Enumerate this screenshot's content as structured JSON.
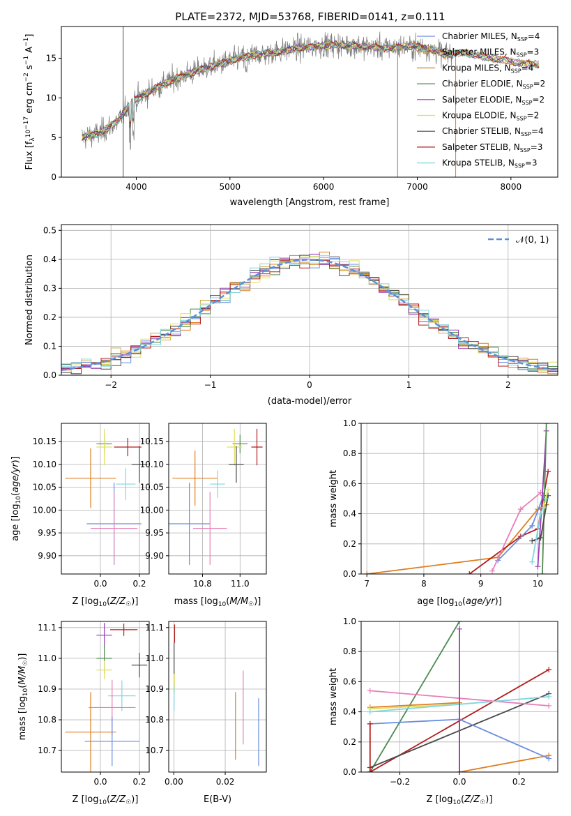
{
  "figure": {
    "title": "PLATE=2372, MJD=53768, FIBERID=0141, z=0.111"
  },
  "colors": {
    "chabrier_miles": "#6a8ee0",
    "salpeter_miles": "#d9a441",
    "kroupa_miles": "#e07d1f",
    "chabrier_elodie": "#4f8a4f",
    "salpeter_elodie": "#9b3bb5",
    "kroupa_elodie": "#e2e05a",
    "chabrier_stelib": "#4a4a4a",
    "salpeter_stelib": "#b31b1b",
    "kroupa_stelib": "#7fd6e0",
    "pink": "#e67fb8",
    "normal_curve": "#5b8fd8",
    "data_spectrum": "#7a7a7a",
    "grid": "#b0b0b0"
  },
  "chart_data": [
    {
      "id": "spectrum",
      "type": "line",
      "title": "PLATE=2372, MJD=53768, FIBERID=0141, z=0.111",
      "xlabel": "wavelength [Angstrom, rest frame]",
      "ylabel": "Flux [f_λ 10^-17 erg cm^-2 s^-1 A^-1]",
      "xlim": [
        3200,
        8500
      ],
      "ylim": [
        0,
        19
      ],
      "xticks": [
        4000,
        5000,
        6000,
        7000,
        8000
      ],
      "yticks": [
        0,
        5,
        10,
        15
      ],
      "grid": false,
      "legend_position": "right",
      "legend": [
        {
          "label": "Chabrier MILES, N",
          "sub": "SSP",
          "tail": "=4",
          "color": "#6a8ee0"
        },
        {
          "label": "Salpeter MILES, N",
          "sub": "SSP",
          "tail": "=3",
          "color": "#d9a441"
        },
        {
          "label": "Kroupa MILES, N",
          "sub": "SSP",
          "tail": "=4",
          "color": "#e07d1f"
        },
        {
          "label": "Chabrier ELODIE, N",
          "sub": "SSP",
          "tail": "=2",
          "color": "#4f8a4f"
        },
        {
          "label": "Salpeter ELODIE, N",
          "sub": "SSP",
          "tail": "=2",
          "color": "#9b3bb5"
        },
        {
          "label": "Kroupa ELODIE, N",
          "sub": "SSP",
          "tail": "=2",
          "color": "#e2e05a"
        },
        {
          "label": "Chabrier STELIB, N",
          "sub": "SSP",
          "tail": "=4",
          "color": "#4a4a4a"
        },
        {
          "label": "Salpeter STELIB, N",
          "sub": "SSP",
          "tail": "=3",
          "color": "#b31b1b"
        },
        {
          "label": "Kroupa STELIB, N",
          "sub": "SSP",
          "tail": "=3",
          "color": "#7fd6e0"
        }
      ],
      "continuum": [
        [
          3420,
          5.0
        ],
        [
          3600,
          5.5
        ],
        [
          3800,
          7.0
        ],
        [
          3950,
          9.5
        ],
        [
          4100,
          10.5
        ],
        [
          4300,
          11.8
        ],
        [
          4500,
          12.8
        ],
        [
          4700,
          13.6
        ],
        [
          4900,
          14.3
        ],
        [
          5100,
          15.0
        ],
        [
          5300,
          15.5
        ],
        [
          5500,
          15.8
        ],
        [
          5700,
          16.2
        ],
        [
          5900,
          16.5
        ],
        [
          6100,
          16.7
        ],
        [
          6300,
          16.6
        ],
        [
          6500,
          16.4
        ],
        [
          6700,
          16.3
        ],
        [
          6900,
          16.5
        ],
        [
          7100,
          16.3
        ],
        [
          7300,
          15.5
        ],
        [
          7500,
          15.7
        ],
        [
          7700,
          15.2
        ],
        [
          7900,
          14.8
        ],
        [
          8100,
          14.4
        ],
        [
          8300,
          14.2
        ]
      ],
      "data_xrange": [
        3420,
        7380
      ],
      "model_xrange": [
        3420,
        8300
      ],
      "spikes": [
        {
          "x": 3860,
          "y0": 0,
          "y1": 19,
          "color": "#4a4a4a"
        },
        {
          "x": 6790,
          "y0": 0,
          "y1": 16.5,
          "color": "#8a8a2a"
        },
        {
          "x": 7410,
          "y0": 0,
          "y1": 15.5,
          "color": "#e07d1f"
        }
      ]
    },
    {
      "id": "residuals",
      "type": "histogram",
      "xlabel": "(data-model)/error",
      "ylabel": "Normed distribution",
      "xlim": [
        -2.5,
        2.5
      ],
      "ylim": [
        0,
        0.52
      ],
      "xticks": [
        -2,
        -1,
        0,
        1,
        2
      ],
      "yticks": [
        0.0,
        0.1,
        0.2,
        0.3,
        0.4,
        0.5
      ],
      "grid": true,
      "legend_position": "top-right",
      "legend": [
        {
          "label": "𝒩(0, 1)",
          "color": "#5b8fd8",
          "style": "dashed"
        }
      ],
      "bin_width": 0.1,
      "series_count": 9
    },
    {
      "id": "age_vs_Z",
      "type": "scatter",
      "xlabel": "Z [log10(Z/Z☉)]",
      "ylabel": "age [log10(age/yr)]",
      "xlim": [
        -0.2,
        0.25
      ],
      "ylim": [
        9.86,
        10.19
      ],
      "xticks": [
        0.0,
        0.2
      ],
      "yticks": [
        9.9,
        9.95,
        10.0,
        10.05,
        10.1,
        10.15
      ],
      "grid": true,
      "points": [
        {
          "x": 0.02,
          "y": 10.145,
          "xerr": 0.04,
          "yerr": 0.02,
          "color": "#4f8a4f"
        },
        {
          "x": 0.02,
          "y": 10.138,
          "xerr": 0.04,
          "yerr": 0.04,
          "color": "#e2e05a"
        },
        {
          "x": 0.14,
          "y": 10.138,
          "xerr": 0.07,
          "yerr": 0.02,
          "color": "#b31b1b"
        },
        {
          "x": 0.2,
          "y": 10.1,
          "xerr": 0.04,
          "yerr": 0.04,
          "color": "#4a4a4a"
        },
        {
          "x": -0.05,
          "y": 10.07,
          "xerr": 0.13,
          "yerr": 0.065,
          "color": "#e07d1f"
        },
        {
          "x": 0.13,
          "y": 10.057,
          "xerr": 0.05,
          "yerr": 0.035,
          "color": "#7fd6e0"
        },
        {
          "x": 0.07,
          "y": 9.97,
          "xerr": 0.14,
          "yerr": 0.09,
          "color": "#6a8ee0"
        },
        {
          "x": 0.07,
          "y": 9.96,
          "xerr": 0.12,
          "yerr": 0.08,
          "color": "#e67fb8"
        }
      ]
    },
    {
      "id": "age_vs_mass",
      "type": "scatter",
      "xlabel": "mass [log10(M/M☉)]",
      "ylabel": "",
      "xlim": [
        10.62,
        11.14
      ],
      "ylim": [
        9.86,
        10.19
      ],
      "xticks": [
        10.8,
        11.0
      ],
      "yticks": [
        9.9,
        9.95,
        10.0,
        10.05,
        10.1,
        10.15
      ],
      "grid": true,
      "points": [
        {
          "x": 11.0,
          "y": 10.145,
          "xerr": 0.04,
          "yerr": 0.02,
          "color": "#4f8a4f"
        },
        {
          "x": 10.97,
          "y": 10.138,
          "xerr": 0.04,
          "yerr": 0.04,
          "color": "#e2e05a"
        },
        {
          "x": 11.09,
          "y": 10.138,
          "xerr": 0.03,
          "yerr": 0.04,
          "color": "#b31b1b"
        },
        {
          "x": 10.98,
          "y": 10.1,
          "xerr": 0.04,
          "yerr": 0.04,
          "color": "#4a4a4a"
        },
        {
          "x": 10.76,
          "y": 10.07,
          "xerr": 0.12,
          "yerr": 0.06,
          "color": "#e07d1f"
        },
        {
          "x": 10.88,
          "y": 10.057,
          "xerr": 0.04,
          "yerr": 0.03,
          "color": "#7fd6e0"
        },
        {
          "x": 10.73,
          "y": 9.97,
          "xerr": 0.11,
          "yerr": 0.09,
          "color": "#6a8ee0"
        },
        {
          "x": 10.84,
          "y": 9.96,
          "xerr": 0.09,
          "yerr": 0.08,
          "color": "#e67fb8"
        }
      ]
    },
    {
      "id": "massweight_vs_age",
      "type": "line",
      "xlabel": "age [log10(age/yr)]",
      "ylabel": "mass weight",
      "xlim": [
        6.9,
        10.35
      ],
      "ylim": [
        0,
        1.0
      ],
      "xticks": [
        7,
        8,
        9,
        10
      ],
      "yticks": [
        0.0,
        0.2,
        0.4,
        0.6,
        0.8,
        1.0
      ],
      "grid": true,
      "series": [
        {
          "color": "#e07d1f",
          "points": [
            [
              7.0,
              0.0
            ],
            [
              9.3,
              0.11
            ],
            [
              10.0,
              0.43
            ],
            [
              10.15,
              0.46
            ]
          ]
        },
        {
          "color": "#b31b1b",
          "points": [
            [
              8.8,
              0.0
            ],
            [
              9.7,
              0.25
            ],
            [
              10.0,
              0.3
            ],
            [
              10.18,
              0.68
            ]
          ]
        },
        {
          "color": "#6a8ee0",
          "points": [
            [
              9.3,
              0.09
            ],
            [
              9.9,
              0.32
            ],
            [
              10.1,
              0.52
            ]
          ]
        },
        {
          "color": "#e67fb8",
          "points": [
            [
              9.2,
              0.02
            ],
            [
              9.7,
              0.43
            ],
            [
              10.05,
              0.54
            ]
          ]
        },
        {
          "color": "#9b3bb5",
          "points": [
            [
              10.0,
              0.05
            ],
            [
              10.15,
              0.95
            ]
          ]
        },
        {
          "color": "#4f8a4f",
          "points": [
            [
              10.08,
              0.0
            ],
            [
              10.15,
              1.0
            ]
          ]
        },
        {
          "color": "#4a4a4a",
          "points": [
            [
              9.9,
              0.22
            ],
            [
              10.05,
              0.24
            ],
            [
              10.18,
              0.52
            ]
          ]
        },
        {
          "color": "#7fd6e0",
          "points": [
            [
              9.9,
              0.08
            ],
            [
              10.05,
              0.4
            ],
            [
              10.15,
              0.5
            ]
          ]
        },
        {
          "color": "#e2e05a",
          "points": [
            [
              10.1,
              0.44
            ],
            [
              10.18,
              0.56
            ]
          ]
        }
      ]
    },
    {
      "id": "mass_vs_Z",
      "type": "scatter",
      "xlabel": "Z [log10(Z/Z☉)]",
      "ylabel": "mass [log10(M/M☉)]",
      "xlim": [
        -0.2,
        0.25
      ],
      "ylim": [
        10.63,
        11.12
      ],
      "xticks": [
        0.0,
        0.2
      ],
      "yticks": [
        10.7,
        10.8,
        10.9,
        11.0,
        11.1
      ],
      "grid": true,
      "points": [
        {
          "x": 0.12,
          "y": 11.093,
          "xerr": 0.07,
          "yerr": 0.02,
          "color": "#b31b1b"
        },
        {
          "x": 0.02,
          "y": 11.075,
          "xerr": 0.04,
          "yerr": 0.04,
          "color": "#9b3bb5"
        },
        {
          "x": 0.02,
          "y": 11.0,
          "xerr": 0.04,
          "yerr": 0.05,
          "color": "#4f8a4f"
        },
        {
          "x": 0.2,
          "y": 10.978,
          "xerr": 0.04,
          "yerr": 0.04,
          "color": "#4a4a4a"
        },
        {
          "x": 0.02,
          "y": 10.962,
          "xerr": 0.04,
          "yerr": 0.03,
          "color": "#e2e05a"
        },
        {
          "x": 0.11,
          "y": 10.878,
          "xerr": 0.07,
          "yerr": 0.05,
          "color": "#7fd6e0"
        },
        {
          "x": 0.06,
          "y": 10.84,
          "xerr": 0.12,
          "yerr": 0.09,
          "color": "#e67fb8"
        },
        {
          "x": -0.05,
          "y": 10.76,
          "xerr": 0.13,
          "yerr": 0.13,
          "color": "#e07d1f"
        },
        {
          "x": 0.06,
          "y": 10.73,
          "xerr": 0.14,
          "yerr": 0.08,
          "color": "#6a8ee0"
        }
      ]
    },
    {
      "id": "mass_vs_ebv",
      "type": "scatter",
      "xlabel": "E(B-V)",
      "ylabel": "",
      "xlim": [
        -0.002,
        0.036
      ],
      "ylim": [
        10.63,
        11.12
      ],
      "xticks": [
        0.0,
        0.02
      ],
      "yticks": [
        10.7,
        10.8,
        10.9,
        11.0,
        11.1
      ],
      "grid": true,
      "points": [
        {
          "x": 0.0003,
          "y": 11.08,
          "xerr": 0,
          "yerr": 0.03,
          "color": "#b31b1b"
        },
        {
          "x": 0.0001,
          "y": 11.0,
          "xerr": 0,
          "yerr": 0.05,
          "color": "#4a4a4a"
        },
        {
          "x": 0.0002,
          "y": 10.92,
          "xerr": 0,
          "yerr": 0.03,
          "color": "#e2e05a"
        },
        {
          "x": 0.0001,
          "y": 10.87,
          "xerr": 0,
          "yerr": 0.04,
          "color": "#7fd6e0"
        },
        {
          "x": 0.024,
          "y": 10.78,
          "xerr": 0,
          "yerr": 0.11,
          "color": "#e07d1f"
        },
        {
          "x": 0.027,
          "y": 10.84,
          "xerr": 0,
          "yerr": 0.12,
          "color": "#e67fb8"
        },
        {
          "x": 0.033,
          "y": 10.76,
          "xerr": 0,
          "yerr": 0.11,
          "color": "#6a8ee0"
        }
      ]
    },
    {
      "id": "massweight_vs_Z",
      "type": "line",
      "xlabel": "Z [log10(Z/Z☉)]",
      "ylabel": "mass weight",
      "xlim": [
        -0.33,
        0.33
      ],
      "ylim": [
        0,
        1.0
      ],
      "xticks": [
        -0.2,
        0.0,
        0.2
      ],
      "yticks": [
        0.0,
        0.2,
        0.4,
        0.6,
        0.8,
        1.0
      ],
      "grid": true,
      "series": [
        {
          "color": "#4f8a4f",
          "points": [
            [
              -0.3,
              0.0
            ],
            [
              0.0,
              1.0
            ]
          ]
        },
        {
          "color": "#b31b1b",
          "points": [
            [
              -0.3,
              0.0
            ],
            [
              0.3,
              0.68
            ]
          ]
        },
        {
          "color": "#4a4a4a",
          "points": [
            [
              -0.3,
              0.03
            ],
            [
              0.3,
              0.52
            ]
          ]
        },
        {
          "color": "#e67fb8",
          "points": [
            [
              -0.3,
              0.54
            ],
            [
              0.3,
              0.44
            ]
          ]
        },
        {
          "color": "#e07d1f",
          "points": [
            [
              -0.3,
              0.43
            ],
            [
              0.0,
              0.46
            ],
            [
              0.0,
              0.0
            ],
            [
              0.3,
              0.11
            ]
          ]
        },
        {
          "color": "#e2e05a",
          "points": [
            [
              -0.3,
              0.42
            ],
            [
              0.0,
              0.45
            ]
          ]
        },
        {
          "color": "#7fd6e0",
          "points": [
            [
              -0.3,
              0.4
            ],
            [
              0.0,
              0.45
            ],
            [
              0.3,
              0.5
            ]
          ]
        },
        {
          "color": "#6a8ee0",
          "points": [
            [
              -0.3,
              0.32
            ],
            [
              0.0,
              0.35
            ],
            [
              0.3,
              0.09
            ]
          ]
        },
        {
          "color": "#9b3bb5",
          "points": [
            [
              0.0,
              0.0
            ],
            [
              0.0,
              0.95
            ]
          ]
        },
        {
          "color": "#b31b1b",
          "points": [
            [
              -0.3,
              0.0
            ],
            [
              -0.3,
              0.32
            ]
          ]
        }
      ]
    }
  ]
}
